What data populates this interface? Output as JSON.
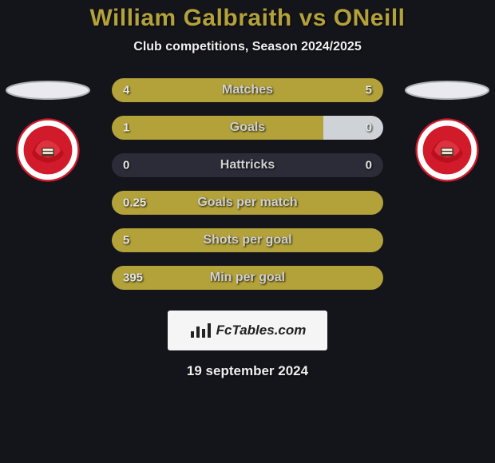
{
  "title": "William Galbraith vs ONeill",
  "subtitle": "Club competitions, Season 2024/2025",
  "date": "19 september 2024",
  "watermark": "FcTables.com",
  "colors": {
    "bar_active": "#b3a23a",
    "bar_dim": "#2c2c38",
    "bg": "#14141b",
    "title": "#b3a23a"
  },
  "stats": [
    {
      "label": "Matches",
      "left_val": "4",
      "right_val": "5",
      "left_pct": 44,
      "right_pct": 56,
      "left_color": "#b3a23a",
      "right_color": "#b3a23a"
    },
    {
      "label": "Goals",
      "left_val": "1",
      "right_val": "0",
      "left_pct": 78,
      "right_pct": 22,
      "left_color": "#b3a23a",
      "right_color": "#cfd2d6"
    },
    {
      "label": "Hattricks",
      "left_val": "0",
      "right_val": "0",
      "left_pct": 50,
      "right_pct": 50,
      "left_color": "#2c2c38",
      "right_color": "#2c2c38"
    },
    {
      "label": "Goals per match",
      "left_val": "0.25",
      "right_val": "",
      "left_pct": 100,
      "right_pct": 0,
      "left_color": "#b3a23a",
      "right_color": "#b3a23a"
    },
    {
      "label": "Shots per goal",
      "left_val": "5",
      "right_val": "",
      "left_pct": 100,
      "right_pct": 0,
      "left_color": "#b3a23a",
      "right_color": "#b3a23a"
    },
    {
      "label": "Min per goal",
      "left_val": "395",
      "right_val": "",
      "left_pct": 100,
      "right_pct": 0,
      "left_color": "#b3a23a",
      "right_color": "#b3a23a"
    }
  ],
  "club_badge": {
    "outer_fill": "#ffffff",
    "inner_fill": "#d11a2a",
    "text": "FOOTBALL CLUB"
  }
}
